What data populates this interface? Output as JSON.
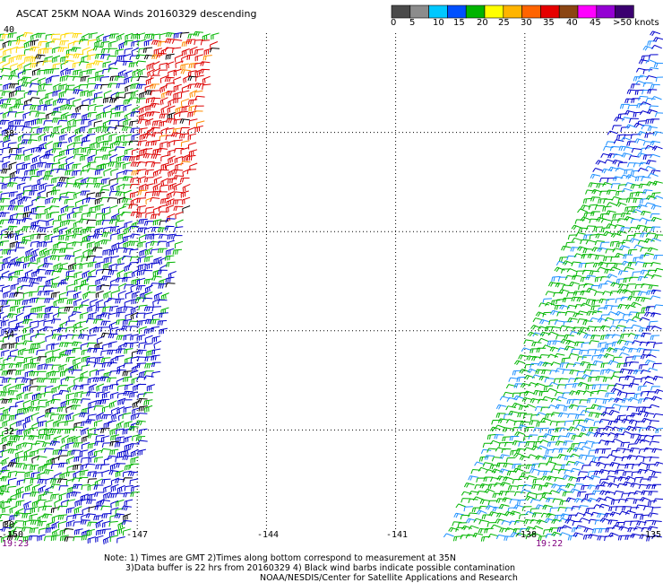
{
  "title": "ASCAT 25KM NOAA Winds 20160329 descending",
  "legend": {
    "labels": [
      "0",
      "5",
      "10",
      "15",
      "20",
      "25",
      "30",
      "35",
      "40",
      "45",
      ">50 knots"
    ],
    "colors": [
      "#4a4a4a",
      "#8c8c8c",
      "#00c8ff",
      "#0050ff",
      "#00b400",
      "#ffff00",
      "#ffb400",
      "#ff6400",
      "#e60000",
      "#8b4513",
      "#ff00ff",
      "#9400d3",
      "#3b0070"
    ],
    "units": "knots"
  },
  "axes": {
    "lat_labels": [
      "40",
      "38",
      "36",
      "34",
      "32",
      "30"
    ],
    "lon_labels": [
      "-150",
      "-147",
      "-144",
      "-141",
      "-138",
      "-135"
    ],
    "lat_values": [
      40,
      38,
      36,
      34,
      32,
      30
    ],
    "lon_values": [
      -150,
      -147,
      -144,
      -141,
      -138,
      -135
    ]
  },
  "times": {
    "left": "19:23",
    "right": "19:22"
  },
  "notes": {
    "line1": "Note: 1) Times are GMT 2)Times along bottom correspond to measurement at 35N",
    "line2": "3)Data buffer is 22 hrs from 20160329 4) Black wind barbs indicate possible contamination",
    "line3": "NOAA/NESDIS/Center for Satellite Applications and Research"
  },
  "barb_colors": {
    "blue": "#0000cc",
    "lightblue": "#1e90ff",
    "green": "#00b400",
    "yellow": "#ffd700",
    "red": "#dd0000",
    "orange": "#ff8c00",
    "black": "#000000"
  }
}
